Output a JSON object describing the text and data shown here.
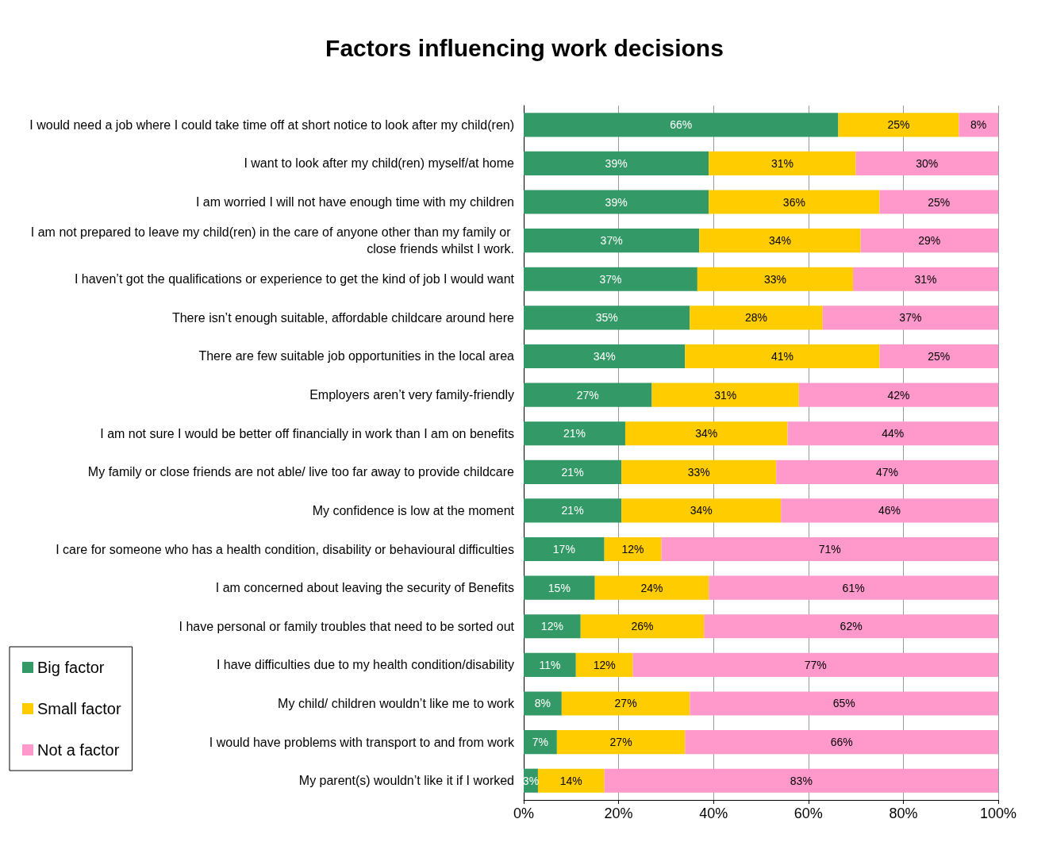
{
  "chart_data": {
    "type": "bar",
    "orientation": "horizontal",
    "stacked": true,
    "title": "Factors influencing work decisions",
    "categories": [
      "I would need a job where I could take time off at short notice to look after my child(ren)",
      "I want to look after my child(ren) myself/at home",
      "I am worried I will not have enough time with my children",
      "I am not prepared to leave my child(ren) in the care of anyone other than my family or close friends whilst I work.",
      "I haven’t got the qualifications or experience to get the kind of job I would want",
      "There isn’t enough suitable, affordable childcare around here",
      "There are few suitable job opportunities in the local area",
      "Employers aren’t very family-friendly",
      "I am not sure I would be better off financially in work than I am on benefits",
      "My family or close friends are not able/ live too far away to provide childcare",
      "My confidence is low at the moment",
      "I care for someone who has a health condition, disability or behavioural difficulties",
      "I am concerned about leaving the security of Benefits",
      "I have personal or family troubles that need to be sorted out",
      "I have difficulties due to my health condition/disability",
      "My child/ children wouldn’t like me to work",
      "I would have problems with transport to and from work",
      "My parent(s) wouldn’t like it if I worked"
    ],
    "series": [
      {
        "name": "Big factor",
        "color": "#339966",
        "values": [
          66.3,
          39,
          39,
          37,
          36.6,
          35,
          34,
          27,
          21.4,
          20.6,
          20.6,
          17,
          15,
          12,
          11,
          8,
          7,
          3
        ],
        "value_labels": [
          "66%",
          "39%",
          "39%",
          "37%",
          "37%",
          "35%",
          "34%",
          "27%",
          "21%",
          "21%",
          "21%",
          "17%",
          "15%",
          "12%",
          "11%",
          "8%",
          "7%",
          "3%"
        ]
      },
      {
        "name": "Small factor",
        "color": "#ffcc00",
        "values": [
          25.4,
          31,
          36,
          34,
          32.8,
          28,
          41,
          31,
          34.2,
          32.6,
          33.6,
          12,
          24,
          26,
          12,
          27,
          27,
          14
        ],
        "value_labels": [
          "25%",
          "31%",
          "36%",
          "34%",
          "33%",
          "28%",
          "41%",
          "31%",
          "34%",
          "33%",
          "34%",
          "12%",
          "24%",
          "26%",
          "12%",
          "27%",
          "27%",
          "14%"
        ]
      },
      {
        "name": "Not a factor",
        "color": "#ff99cc",
        "values": [
          8.3,
          30,
          25,
          29,
          30.6,
          37,
          25,
          42,
          44.4,
          46.8,
          45.8,
          71,
          61,
          62,
          77,
          65,
          66,
          83
        ],
        "value_labels": [
          "8%",
          "30%",
          "25%",
          "29%",
          "31%",
          "37%",
          "25%",
          "42%",
          "44%",
          "47%",
          "46%",
          "71%",
          "61%",
          "62%",
          "77%",
          "65%",
          "66%",
          "83%"
        ]
      }
    ],
    "xlim": [
      0,
      100
    ],
    "xticks": [
      {
        "value": 0,
        "label": "0%"
      },
      {
        "value": 20,
        "label": "20%"
      },
      {
        "value": 40,
        "label": "40%"
      },
      {
        "value": 60,
        "label": "60%"
      },
      {
        "value": 80,
        "label": "80%"
      },
      {
        "value": 100,
        "label": "100%"
      }
    ],
    "grid": "x",
    "legend": "bottom left"
  }
}
